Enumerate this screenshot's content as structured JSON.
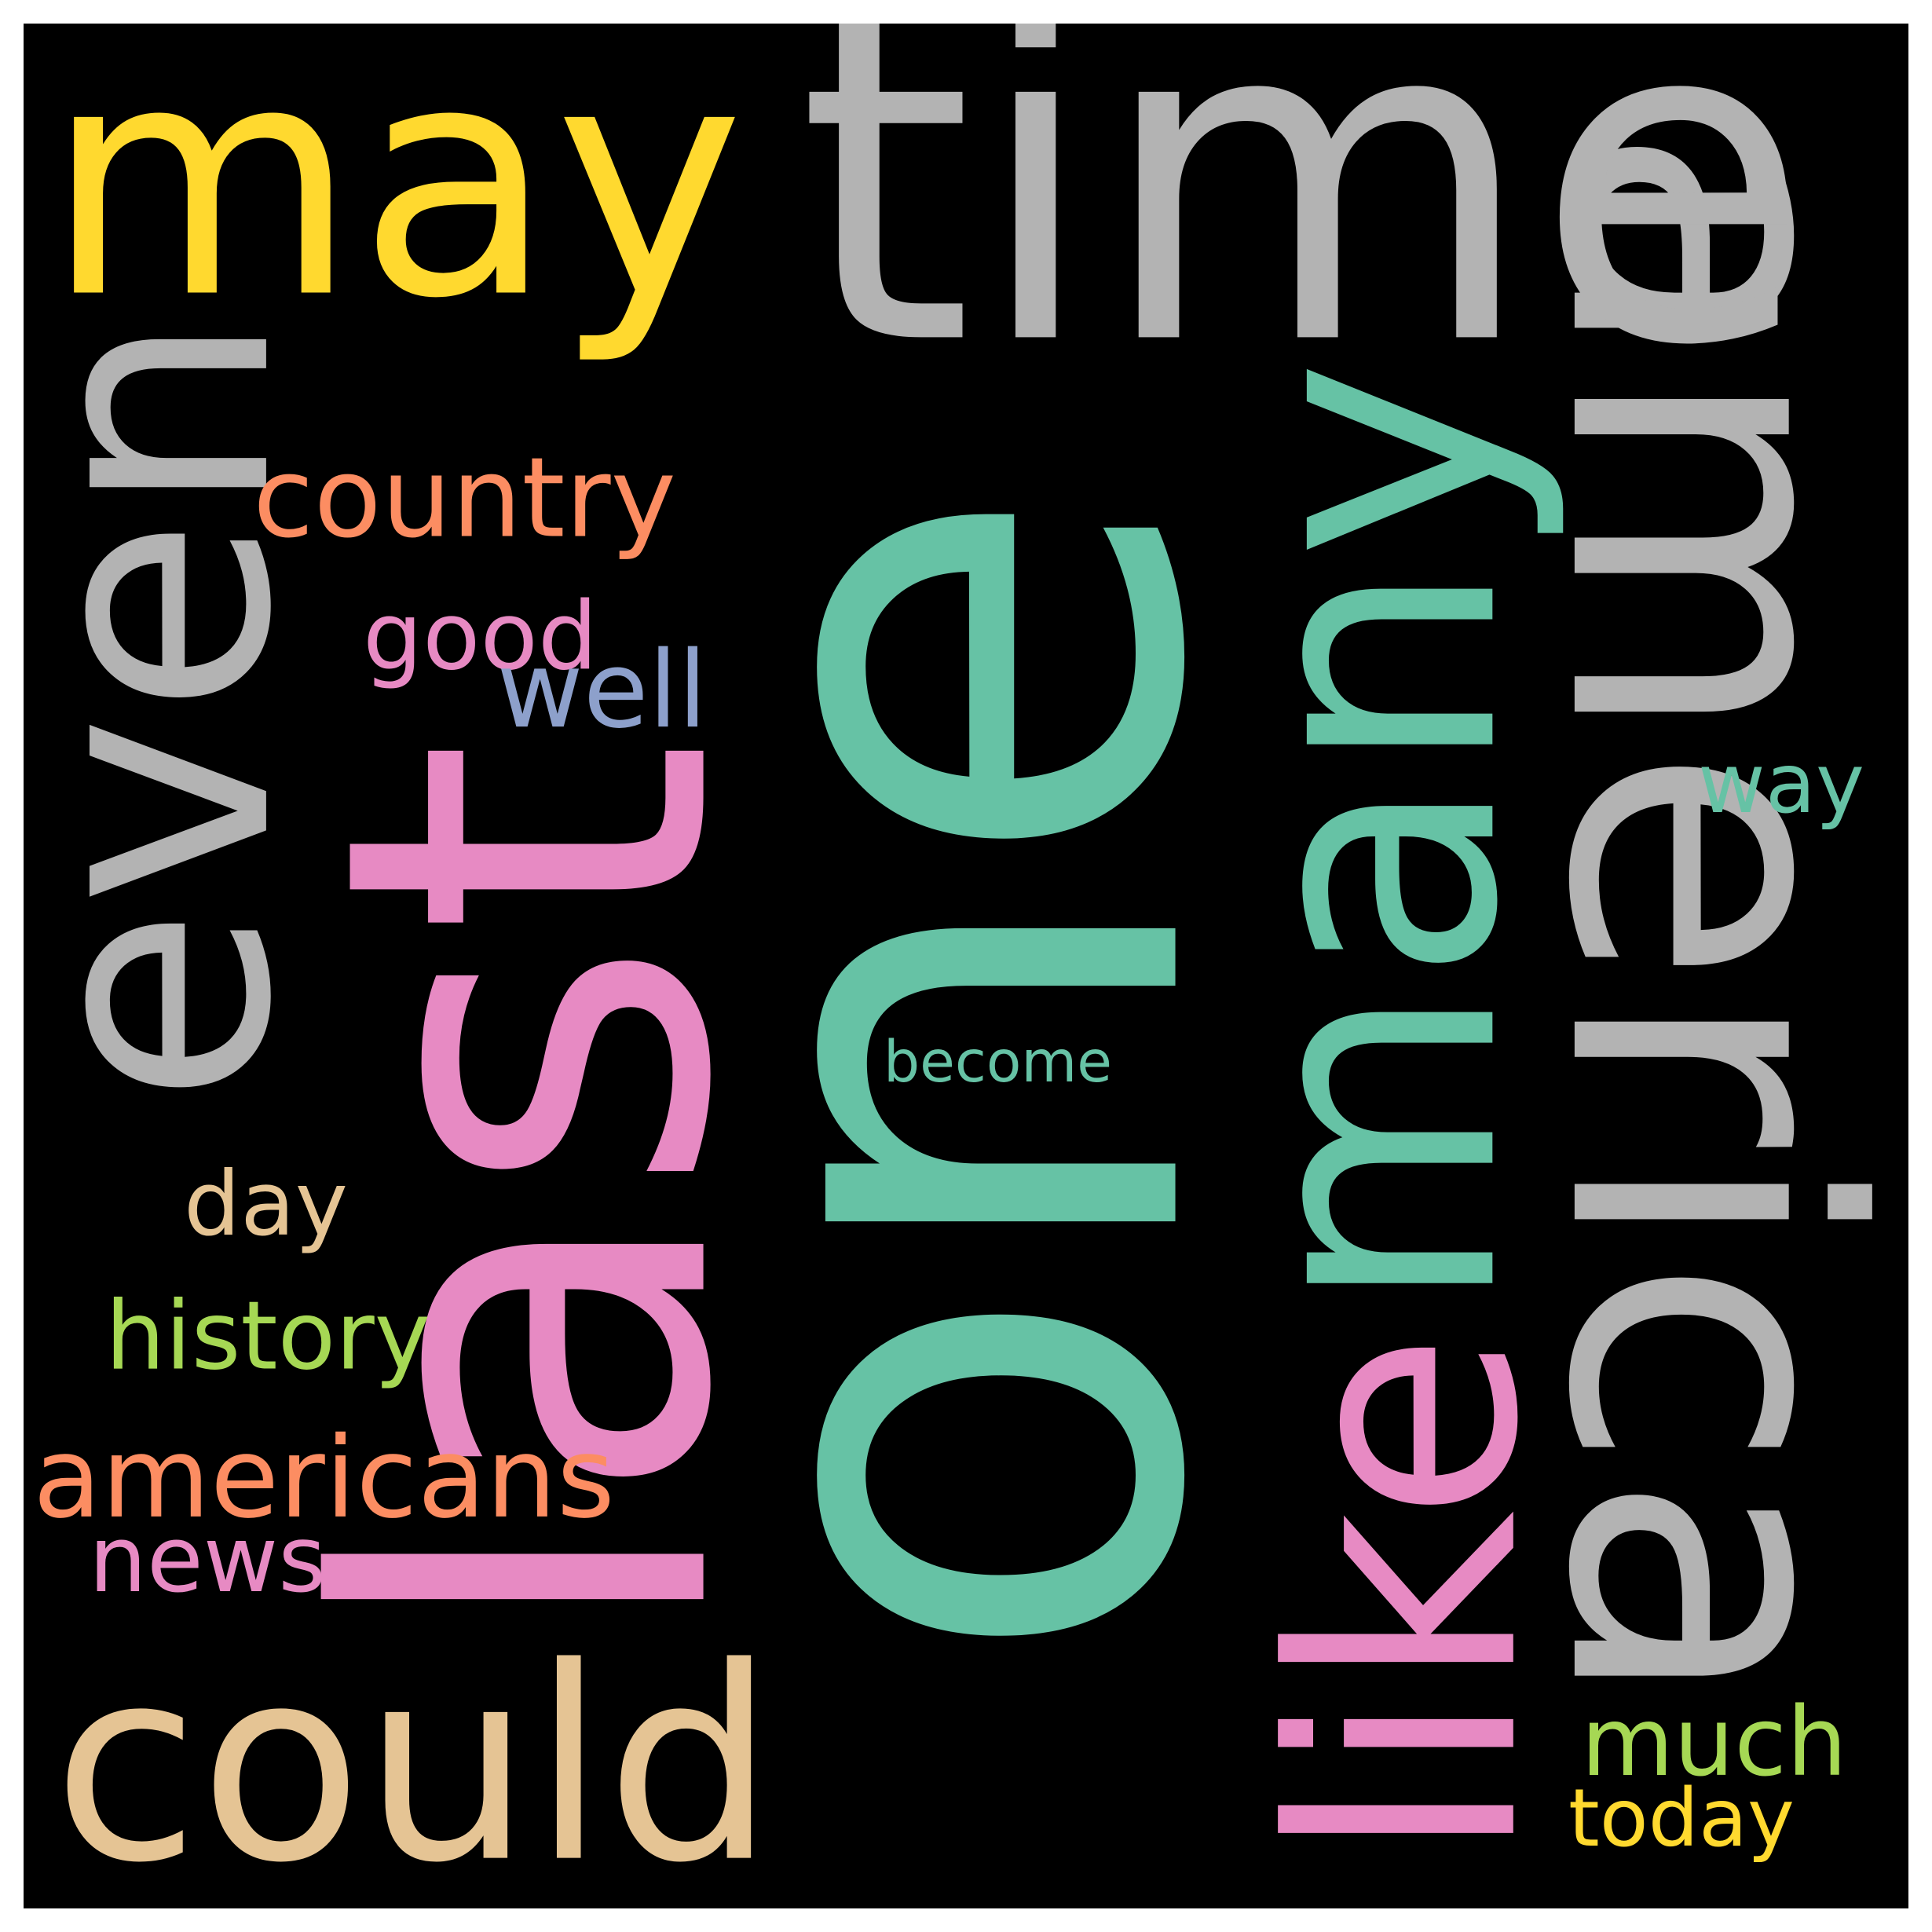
{
  "background": "#000000",
  "frame_color": "#ffffff",
  "words": [
    {
      "text": "one",
      "color": "#66c2a5"
    },
    {
      "text": "america",
      "color": "#b3b3b3"
    },
    {
      "text": "last",
      "color": "#e78ac3"
    },
    {
      "text": "many",
      "color": "#66c2a5"
    },
    {
      "text": "time",
      "color": "#b3b3b3"
    },
    {
      "text": "even",
      "color": "#b3b3b3"
    },
    {
      "text": "may",
      "color": "#ffd92f"
    },
    {
      "text": "like",
      "color": "#e78ac3"
    },
    {
      "text": "could",
      "color": "#e5c494"
    },
    {
      "text": "americans",
      "color": "#fc8d62"
    },
    {
      "text": "country",
      "color": "#fc8d62"
    },
    {
      "text": "good",
      "color": "#e78ac3"
    },
    {
      "text": "much",
      "color": "#a6d854"
    },
    {
      "text": "news",
      "color": "#e78ac3"
    },
    {
      "text": "well",
      "color": "#8da0cb"
    },
    {
      "text": "day",
      "color": "#e5c494"
    },
    {
      "text": "way",
      "color": "#66c2a5"
    },
    {
      "text": "history",
      "color": "#a6d854"
    },
    {
      "text": "today",
      "color": "#ffd92f"
    },
    {
      "text": "become",
      "color": "#66c2a5"
    }
  ]
}
